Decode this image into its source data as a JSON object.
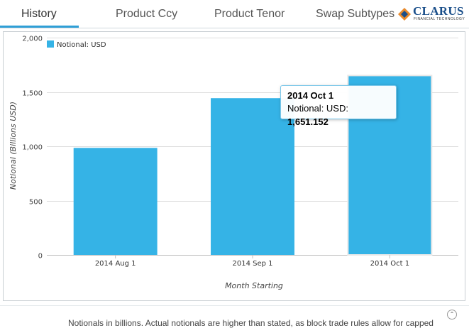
{
  "tabs": [
    {
      "label": "History",
      "active": true
    },
    {
      "label": "Product Ccy",
      "active": false
    },
    {
      "label": "Product Tenor",
      "active": false
    },
    {
      "label": "Swap Subtypes",
      "active": false
    }
  ],
  "logo": {
    "text": "CLARUS",
    "sub": "FINANCIAL TECHNOLOGY"
  },
  "colors": {
    "bar": "#35b3e6",
    "accent": "#2f9fd6",
    "grid": "#dddddd"
  },
  "chart_data": {
    "type": "bar",
    "categories": [
      "2014 Aug 1",
      "2014 Sep 1",
      "2014 Oct 1"
    ],
    "series": [
      {
        "name": "Notional: USD",
        "values": [
          985,
          1443,
          1651.152
        ]
      }
    ],
    "xlabel": "Month Starting",
    "ylabel": "Notional (Billions USD)",
    "ylim": [
      0,
      2000
    ],
    "yticks": [
      0,
      500,
      1000,
      1500,
      2000
    ],
    "ytick_labels": [
      "0",
      "500",
      "1,000",
      "1,500",
      "2,000"
    ],
    "grid": true,
    "legend": "top-left"
  },
  "tooltip": {
    "title": "2014 Oct 1",
    "label": "Notional: USD:",
    "value": "1,651.152"
  },
  "footnote": "Notionals in billions. Actual notionals are higher than stated, as block trade rules allow for capped",
  "scroll_icon": "double-chevron-up-icon"
}
